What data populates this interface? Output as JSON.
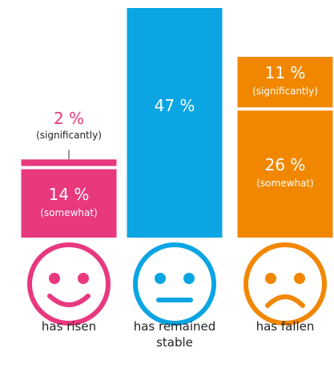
{
  "chart_data": {
    "type": "stacked-bar",
    "categories": [
      "has risen",
      "has remained stable",
      "has fallen"
    ],
    "colors": [
      "#e8387e",
      "#0aa5e2",
      "#f18700"
    ],
    "series": [
      {
        "name": "(somewhat)",
        "values": [
          14,
          null,
          26
        ],
        "value_labels": [
          "14 %",
          null,
          "26 %"
        ]
      },
      {
        "values": [
          null,
          47,
          null
        ],
        "value_labels": [
          null,
          "47 %",
          null
        ]
      },
      {
        "name": "(significantly)",
        "values": [
          2,
          null,
          11
        ],
        "value_labels": [
          "2 %",
          null,
          "11 %"
        ]
      }
    ]
  }
}
